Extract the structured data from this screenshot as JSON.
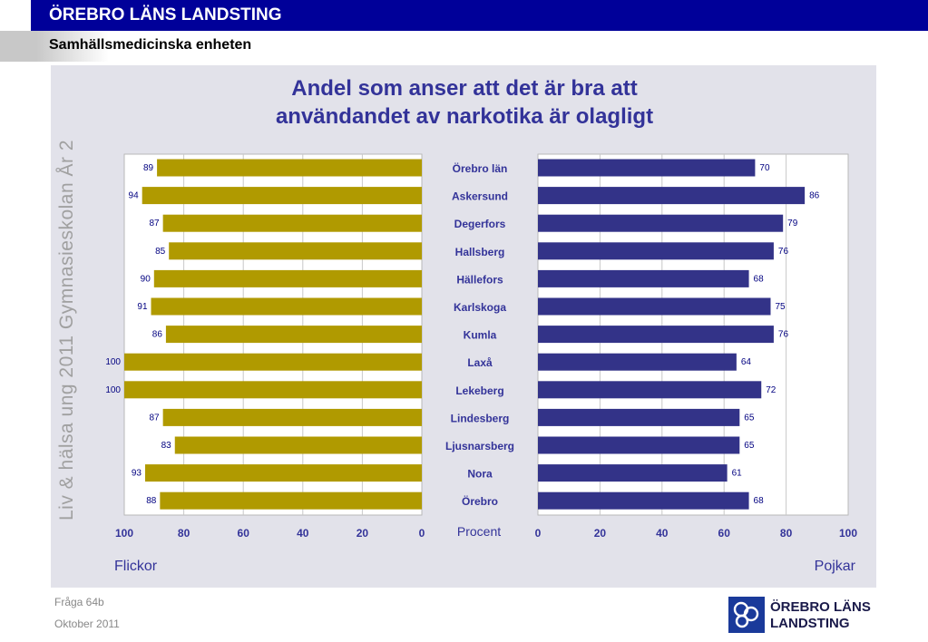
{
  "header": {
    "org_title": "ÖREBRO LÄNS LANDSTING",
    "unit": "Samhällsmedicinska enheten"
  },
  "side_label": "Liv & hälsa ung 2011 Gymnasieskolan År 2",
  "footer": {
    "question": "Fråga 64b",
    "date": "Oktober 2011"
  },
  "logo": {
    "line1": "ÖREBRO LÄNS",
    "line2": "LANDSTING"
  },
  "colors": {
    "girls": "#b09a00",
    "boys": "#333388",
    "accent": "#333399",
    "header_bg": "#000099"
  },
  "chart_data": {
    "type": "bar",
    "orientation": "horizontal-butterfly",
    "title": "Andel som anser att det är bra att användandet av narkotika är olagligt",
    "title_lines": [
      "Andel som anser att det är bra att",
      "användandet av narkotika är olagligt"
    ],
    "xlabel": "Procent",
    "xlim": [
      0,
      100
    ],
    "ticks": [
      0,
      20,
      40,
      60,
      80,
      100
    ],
    "grid": true,
    "categories": [
      "Örebro län",
      "Askersund",
      "Degerfors",
      "Hallsberg",
      "Hällefors",
      "Karlskoga",
      "Kumla",
      "Laxå",
      "Lekeberg",
      "Lindesberg",
      "Ljusnarsberg",
      "Nora",
      "Örebro"
    ],
    "series": [
      {
        "name": "Flickor",
        "values": [
          89,
          94,
          87,
          85,
          90,
          91,
          86,
          100,
          100,
          87,
          83,
          93,
          88
        ]
      },
      {
        "name": "Pojkar",
        "values": [
          70,
          86,
          79,
          76,
          68,
          75,
          76,
          64,
          72,
          65,
          65,
          61,
          68
        ]
      }
    ]
  }
}
